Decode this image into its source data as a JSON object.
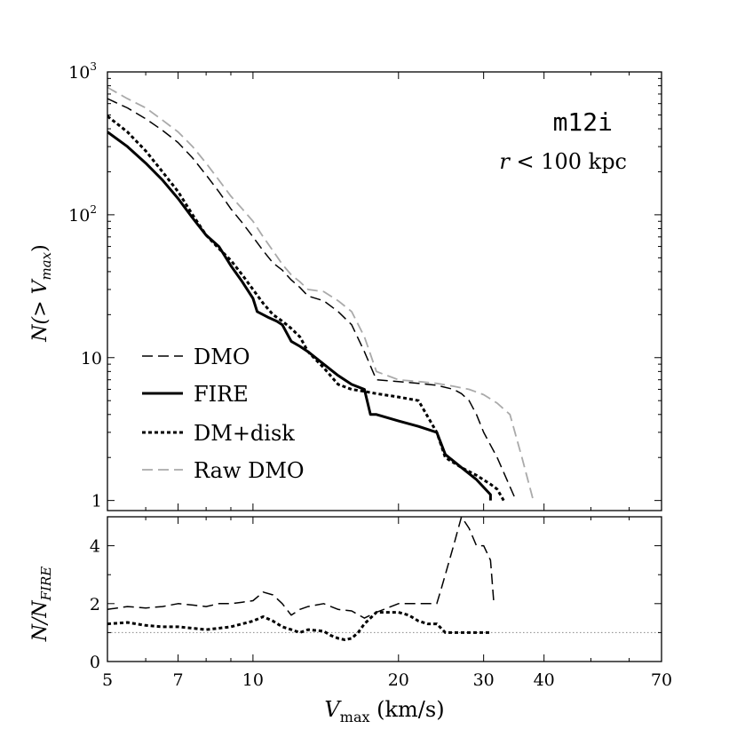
{
  "chart_data": [
    {
      "type": "line",
      "panel": "top",
      "annotation_title": "m12i",
      "annotation_sub_r": "r",
      "annotation_sub_rest": " < 100 kpc",
      "ylabel_main": "N(> V",
      "ylabel_sub": "max",
      "ylabel_close": ")",
      "xscale": "log",
      "yscale": "log",
      "xlim": [
        5,
        70
      ],
      "ylim": [
        0.85,
        1000
      ],
      "xticks": [
        5,
        7,
        10,
        20,
        30,
        40,
        70
      ],
      "yticks": [
        {
          "value": 1,
          "label": "1",
          "sup": ""
        },
        {
          "value": 10,
          "label": "10",
          "sup": ""
        },
        {
          "value": 100,
          "label": "10",
          "sup": "2"
        },
        {
          "value": 1000,
          "label": "10",
          "sup": "3"
        }
      ],
      "legend_position": "lower-left",
      "series": [
        {
          "name": "DMO",
          "color": "#000000",
          "dash": "12,6",
          "width": 1.5,
          "x": [
            5,
            5.5,
            6,
            6.5,
            7,
            7.5,
            8,
            8.5,
            9,
            9.5,
            10,
            10.5,
            11,
            11.5,
            12,
            12.5,
            13,
            14,
            15,
            16,
            17,
            18,
            20,
            22,
            24,
            26,
            27,
            28,
            29,
            30,
            32,
            35
          ],
          "y": [
            650,
            560,
            470,
            390,
            320,
            250,
            190,
            145,
            110,
            88,
            70,
            56,
            46,
            41,
            35,
            31,
            27,
            25,
            21,
            17,
            11,
            7,
            6.8,
            6.6,
            6.4,
            6.0,
            5.6,
            5.0,
            4.0,
            3.0,
            2.0,
            1.0
          ]
        },
        {
          "name": "FIRE",
          "color": "#000000",
          "dash": "",
          "width": 3,
          "x": [
            5,
            5.5,
            6,
            6.5,
            7,
            7.5,
            8,
            8.5,
            9,
            9.5,
            10,
            10.2,
            10.8,
            11.2,
            11.5,
            12,
            12.5,
            13,
            14,
            15,
            16,
            17,
            17.5,
            18,
            20,
            22,
            24,
            25,
            27,
            29,
            31,
            31
          ],
          "y": [
            380,
            300,
            230,
            175,
            130,
            95,
            72,
            60,
            44,
            34,
            26,
            21,
            19,
            18,
            17,
            13,
            12,
            11,
            9,
            7.5,
            6.5,
            6,
            4,
            4,
            3.6,
            3.3,
            3.0,
            2.1,
            1.7,
            1.4,
            1.1,
            1.0
          ]
        },
        {
          "name": "DM+disk",
          "color": "#000000",
          "dash": "4,3",
          "width": 3,
          "x": [
            5,
            5.5,
            6,
            6.5,
            7,
            7.5,
            8,
            8.5,
            9,
            9.5,
            10,
            10.5,
            11,
            11.5,
            12,
            12.5,
            13,
            14,
            15,
            16,
            17,
            18,
            20,
            22,
            24,
            25,
            27,
            29,
            31,
            32,
            33
          ],
          "y": [
            490,
            380,
            280,
            200,
            145,
            100,
            72,
            58,
            48,
            38,
            30,
            24,
            20,
            18,
            16,
            14,
            11,
            8.5,
            6.5,
            6.0,
            5.8,
            5.6,
            5.3,
            5.0,
            3.0,
            2.0,
            1.7,
            1.5,
            1.3,
            1.2,
            1.0
          ]
        },
        {
          "name": "Raw DMO",
          "color": "#aaaaaa",
          "dash": "12,6",
          "width": 1.8,
          "x": [
            5,
            5.5,
            6,
            6.5,
            7,
            7.5,
            8,
            8.5,
            9,
            9.5,
            10,
            10.5,
            11,
            11.5,
            12,
            12.5,
            13,
            14,
            15,
            16,
            17,
            18,
            20,
            22,
            24,
            26,
            28,
            30,
            32,
            34,
            36,
            38
          ],
          "y": [
            780,
            650,
            560,
            460,
            380,
            300,
            230,
            175,
            135,
            110,
            90,
            70,
            56,
            45,
            38,
            34,
            30,
            29,
            25,
            21,
            14,
            8,
            7.0,
            6.8,
            6.6,
            6.3,
            6.0,
            5.5,
            4.8,
            4.0,
            2.0,
            1.0
          ]
        }
      ]
    },
    {
      "type": "line",
      "panel": "bottom",
      "ylabel_main": "N/N",
      "ylabel_sub": "FIRE",
      "xlabel_main": "V",
      "xlabel_sub": "max",
      "xlabel_units": " (km/s)",
      "xscale": "log",
      "xlim": [
        5,
        70
      ],
      "ylim": [
        0,
        5
      ],
      "xticks": [
        5,
        7,
        10,
        20,
        30,
        40,
        70
      ],
      "yticks": [
        0,
        2,
        4
      ],
      "reference_line": {
        "y": 1,
        "style": "dotted",
        "color": "#888888"
      },
      "series": [
        {
          "name": "DMO",
          "color": "#000000",
          "dash": "12,6",
          "width": 1.5,
          "x": [
            5,
            5.5,
            6,
            6.5,
            7,
            7.5,
            8,
            8.5,
            9,
            9.5,
            10,
            10.5,
            11,
            11.5,
            12,
            12.5,
            13,
            14,
            15,
            16,
            17,
            18,
            20,
            22,
            24,
            24.5,
            25,
            26,
            27,
            28,
            29,
            30,
            31,
            31.5
          ],
          "y": [
            1.8,
            1.9,
            1.85,
            1.9,
            2.0,
            1.95,
            1.9,
            2.0,
            2.0,
            2.05,
            2.1,
            2.4,
            2.3,
            2.0,
            1.6,
            1.8,
            1.9,
            2.0,
            1.8,
            1.75,
            1.5,
            1.7,
            2.0,
            2.0,
            2.0,
            2.5,
            3.0,
            4.0,
            5.0,
            4.6,
            4.0,
            4.0,
            3.5,
            2.0
          ]
        },
        {
          "name": "DM+disk",
          "color": "#000000",
          "dash": "4,3",
          "width": 3,
          "x": [
            5,
            5.5,
            6,
            6.5,
            7,
            7.5,
            8,
            8.5,
            9,
            9.5,
            10,
            10.5,
            11,
            11.5,
            12,
            12.5,
            13,
            14,
            14.5,
            15,
            15.5,
            16,
            16.5,
            17,
            17.5,
            18,
            19,
            20,
            21,
            22,
            23,
            24,
            25,
            26,
            27,
            28,
            29,
            30,
            31
          ],
          "y": [
            1.3,
            1.35,
            1.25,
            1.2,
            1.2,
            1.15,
            1.1,
            1.15,
            1.2,
            1.3,
            1.4,
            1.55,
            1.4,
            1.2,
            1.1,
            1.0,
            1.1,
            1.05,
            0.9,
            0.8,
            0.75,
            0.8,
            1.0,
            1.3,
            1.5,
            1.7,
            1.7,
            1.7,
            1.6,
            1.4,
            1.3,
            1.3,
            1.0,
            1.0,
            1.0,
            1.0,
            1.0,
            1.0,
            1.0
          ]
        }
      ]
    }
  ]
}
